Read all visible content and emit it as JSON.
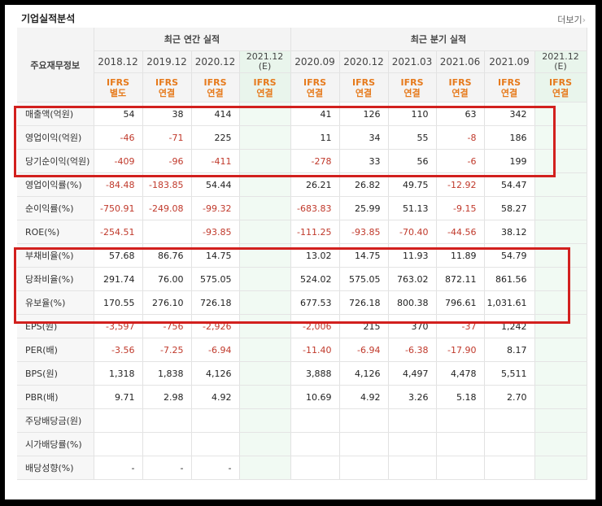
{
  "header": {
    "title": "기업실적분석",
    "more_label": "더보기",
    "more_icon": "chevron-right-icon"
  },
  "table": {
    "row_header": "주요재무정보",
    "groups": [
      "최근 연간 실적",
      "최근 분기 실적"
    ],
    "periods": [
      {
        "year": "2018.12",
        "ifrs": "IFRS",
        "type": "별도",
        "est": false
      },
      {
        "year": "2019.12",
        "ifrs": "IFRS",
        "type": "연결",
        "est": false
      },
      {
        "year": "2020.12",
        "ifrs": "IFRS",
        "type": "연결",
        "est": false
      },
      {
        "year": "2021.12",
        "est_label": "(E)",
        "ifrs": "IFRS",
        "type": "연결",
        "est": true
      },
      {
        "year": "2020.09",
        "ifrs": "IFRS",
        "type": "연결",
        "est": false
      },
      {
        "year": "2020.12",
        "ifrs": "IFRS",
        "type": "연결",
        "est": false
      },
      {
        "year": "2021.03",
        "ifrs": "IFRS",
        "type": "연결",
        "est": false
      },
      {
        "year": "2021.06",
        "ifrs": "IFRS",
        "type": "연결",
        "est": false
      },
      {
        "year": "2021.09",
        "ifrs": "IFRS",
        "type": "연결",
        "est": false
      },
      {
        "year": "2021.12",
        "est_label": "(E)",
        "ifrs": "IFRS",
        "type": "연결",
        "est": true
      }
    ],
    "rows": [
      {
        "label": "매출액(억원)",
        "values": [
          "54",
          "38",
          "414",
          "",
          "41",
          "126",
          "110",
          "63",
          "342",
          ""
        ]
      },
      {
        "label": "영업이익(억원)",
        "values": [
          "-46",
          "-71",
          "225",
          "",
          "11",
          "34",
          "55",
          "-8",
          "186",
          ""
        ]
      },
      {
        "label": "당기순이익(억원)",
        "values": [
          "-409",
          "-96",
          "-411",
          "",
          "-278",
          "33",
          "56",
          "-6",
          "199",
          ""
        ]
      },
      {
        "label": "영업이익률(%)",
        "values": [
          "-84.48",
          "-183.85",
          "54.44",
          "",
          "26.21",
          "26.82",
          "49.75",
          "-12.92",
          "54.47",
          ""
        ]
      },
      {
        "label": "순이익률(%)",
        "values": [
          "-750.91",
          "-249.08",
          "-99.32",
          "",
          "-683.83",
          "25.99",
          "51.13",
          "-9.15",
          "58.27",
          ""
        ]
      },
      {
        "label": "ROE(%)",
        "values": [
          "-254.51",
          "",
          "-93.85",
          "",
          "-111.25",
          "-93.85",
          "-70.40",
          "-44.56",
          "38.12",
          ""
        ]
      },
      {
        "label": "부채비율(%)",
        "values": [
          "57.68",
          "86.76",
          "14.75",
          "",
          "13.02",
          "14.75",
          "11.93",
          "11.89",
          "54.79",
          ""
        ]
      },
      {
        "label": "당좌비율(%)",
        "values": [
          "291.74",
          "76.00",
          "575.05",
          "",
          "524.02",
          "575.05",
          "763.02",
          "872.11",
          "861.56",
          ""
        ]
      },
      {
        "label": "유보율(%)",
        "values": [
          "170.55",
          "276.10",
          "726.18",
          "",
          "677.53",
          "726.18",
          "800.38",
          "796.61",
          "1,031.61",
          ""
        ]
      },
      {
        "label": "EPS(원)",
        "values": [
          "-3,597",
          "-756",
          "-2,926",
          "",
          "-2,006",
          "215",
          "370",
          "-37",
          "1,242",
          ""
        ]
      },
      {
        "label": "PER(배)",
        "values": [
          "-3.56",
          "-7.25",
          "-6.94",
          "",
          "-11.40",
          "-6.94",
          "-6.38",
          "-17.90",
          "8.17",
          ""
        ]
      },
      {
        "label": "BPS(원)",
        "values": [
          "1,318",
          "1,838",
          "4,126",
          "",
          "3,888",
          "4,126",
          "4,497",
          "4,478",
          "5,511",
          ""
        ]
      },
      {
        "label": "PBR(배)",
        "values": [
          "9.71",
          "2.98",
          "4.92",
          "",
          "10.69",
          "4.92",
          "3.26",
          "5.18",
          "2.70",
          ""
        ]
      },
      {
        "label": "주당배당금(원)",
        "values": [
          "",
          "",
          "",
          "",
          "",
          "",
          "",
          "",
          "",
          ""
        ]
      },
      {
        "label": "시가배당률(%)",
        "values": [
          "",
          "",
          "",
          "",
          "",
          "",
          "",
          "",
          "",
          ""
        ]
      },
      {
        "label": "배당성향(%)",
        "values": [
          "-",
          "-",
          "-",
          "",
          "",
          "",
          "",
          "",
          "",
          ""
        ]
      }
    ]
  },
  "colors": {
    "highlight_box": "#d2201e",
    "negative": "#c0392b",
    "ifrs_text": "#e67a1c",
    "estimate_bg": "#e9f5ec"
  }
}
